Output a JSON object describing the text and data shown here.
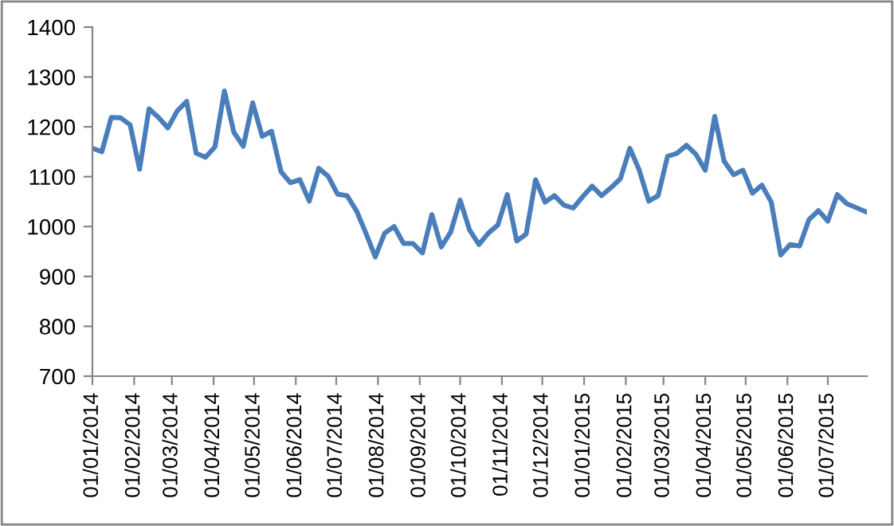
{
  "chart_data": {
    "type": "line",
    "x": [
      "2014-01-01",
      "2014-01-08",
      "2014-01-15",
      "2014-01-22",
      "2014-01-29",
      "2014-02-05",
      "2014-02-12",
      "2014-02-19",
      "2014-02-26",
      "2014-03-05",
      "2014-03-12",
      "2014-03-19",
      "2014-03-26",
      "2014-04-02",
      "2014-04-09",
      "2014-04-16",
      "2014-04-23",
      "2014-04-30",
      "2014-05-07",
      "2014-05-14",
      "2014-05-21",
      "2014-05-28",
      "2014-06-04",
      "2014-06-11",
      "2014-06-18",
      "2014-06-25",
      "2014-07-02",
      "2014-07-09",
      "2014-07-16",
      "2014-07-23",
      "2014-07-30",
      "2014-08-06",
      "2014-08-13",
      "2014-08-20",
      "2014-08-27",
      "2014-09-03",
      "2014-09-10",
      "2014-09-17",
      "2014-09-24",
      "2014-10-01",
      "2014-10-08",
      "2014-10-15",
      "2014-10-22",
      "2014-10-29",
      "2014-11-05",
      "2014-11-12",
      "2014-11-19",
      "2014-11-26",
      "2014-12-03",
      "2014-12-10",
      "2014-12-17",
      "2014-12-24",
      "2014-12-31",
      "2015-01-07",
      "2015-01-14",
      "2015-01-21",
      "2015-01-28",
      "2015-02-04",
      "2015-02-11",
      "2015-02-18",
      "2015-02-25",
      "2015-03-04",
      "2015-03-11",
      "2015-03-18",
      "2015-03-25",
      "2015-04-01",
      "2015-04-08",
      "2015-04-15",
      "2015-04-22",
      "2015-04-29",
      "2015-05-06",
      "2015-05-13",
      "2015-05-20",
      "2015-05-27",
      "2015-06-03",
      "2015-06-10",
      "2015-06-17",
      "2015-06-24",
      "2015-07-01",
      "2015-07-08",
      "2015-07-15",
      "2015-07-22",
      "2015-07-29"
    ],
    "series": [
      {
        "color": "#4a7ebb",
        "values": [
          1157,
          1150,
          1219,
          1218,
          1204,
          1115,
          1236,
          1219,
          1198,
          1232,
          1251,
          1147,
          1139,
          1160,
          1272,
          1189,
          1161,
          1248,
          1181,
          1191,
          1110,
          1088,
          1094,
          1051,
          1117,
          1101,
          1065,
          1062,
          1032,
          987,
          939,
          987,
          1000,
          966,
          966,
          947,
          1024,
          959,
          989,
          1053,
          993,
          964,
          987,
          1003,
          1064,
          971,
          985,
          1094,
          1049,
          1062,
          1043,
          1037,
          1060,
          1081,
          1062,
          1078,
          1096,
          1157,
          1113,
          1051,
          1062,
          1141,
          1147,
          1163,
          1145,
          1113,
          1221,
          1131,
          1104,
          1113,
          1067,
          1083,
          1049,
          943,
          964,
          961,
          1014,
          1032,
          1011,
          1064,
          1046,
          1038,
          1030
        ]
      }
    ],
    "xlim": [
      "2014-01-01",
      "2015-07-30"
    ],
    "xticks": [
      {
        "value": "2014-01-01",
        "label": "01/01/2014"
      },
      {
        "value": "2014-02-01",
        "label": "01/02/2014"
      },
      {
        "value": "2014-03-01",
        "label": "01/03/2014"
      },
      {
        "value": "2014-04-01",
        "label": "01/04/2014"
      },
      {
        "value": "2014-05-01",
        "label": "01/05/2014"
      },
      {
        "value": "2014-06-01",
        "label": "01/06/2014"
      },
      {
        "value": "2014-07-01",
        "label": "01/07/2014"
      },
      {
        "value": "2014-08-01",
        "label": "01/08/2014"
      },
      {
        "value": "2014-09-01",
        "label": "01/09/2014"
      },
      {
        "value": "2014-10-01",
        "label": "01/10/2014"
      },
      {
        "value": "2014-11-01",
        "label": "01/11/2014"
      },
      {
        "value": "2014-12-01",
        "label": "01/12/2014"
      },
      {
        "value": "2015-01-01",
        "label": "01/01/2015"
      },
      {
        "value": "2015-02-01",
        "label": "01/02/2015"
      },
      {
        "value": "2015-03-01",
        "label": "01/03/2015"
      },
      {
        "value": "2015-04-01",
        "label": "01/04/2015"
      },
      {
        "value": "2015-05-01",
        "label": "01/05/2015"
      },
      {
        "value": "2015-06-01",
        "label": "01/06/2015"
      },
      {
        "value": "2015-07-01",
        "label": "01/07/2015"
      }
    ],
    "ylim": [
      700,
      1400
    ],
    "yticks": [
      700,
      800,
      900,
      1000,
      1100,
      1200,
      1300,
      1400
    ],
    "grid": false,
    "marker": "none",
    "line_style": "solid"
  }
}
